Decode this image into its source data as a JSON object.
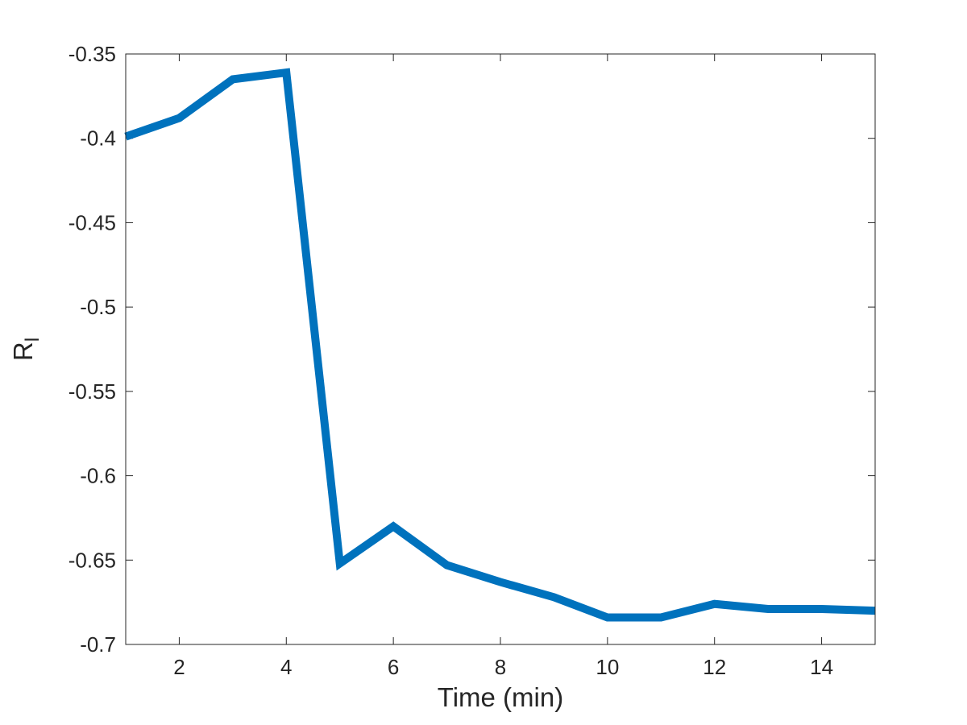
{
  "chart_data": {
    "type": "line",
    "title": "",
    "xlabel": "Time (min)",
    "ylabel": "R",
    "ylabel_subscript": "l",
    "xlim": [
      1,
      15
    ],
    "ylim": [
      -0.7,
      -0.35
    ],
    "xticks": [
      2,
      4,
      6,
      8,
      10,
      12,
      14
    ],
    "xtick_labels": [
      "2",
      "4",
      "6",
      "8",
      "10",
      "12",
      "14"
    ],
    "yticks": [
      -0.35,
      -0.4,
      -0.45,
      -0.5,
      -0.55,
      -0.6,
      -0.65,
      -0.7
    ],
    "ytick_labels": [
      "-0.35",
      "-0.4",
      "-0.45",
      "-0.5",
      "-0.55",
      "-0.6",
      "-0.65",
      "-0.7"
    ],
    "grid": false,
    "box": true,
    "series": [
      {
        "color": "#0072BD",
        "x": [
          1,
          2,
          3,
          4,
          5,
          6,
          7,
          8,
          9,
          10,
          11,
          12,
          13,
          14,
          15
        ],
        "y": [
          -0.399,
          -0.388,
          -0.365,
          -0.361,
          -0.652,
          -0.63,
          -0.653,
          -0.663,
          -0.672,
          -0.684,
          -0.684,
          -0.676,
          -0.679,
          -0.679,
          -0.68
        ]
      }
    ]
  }
}
